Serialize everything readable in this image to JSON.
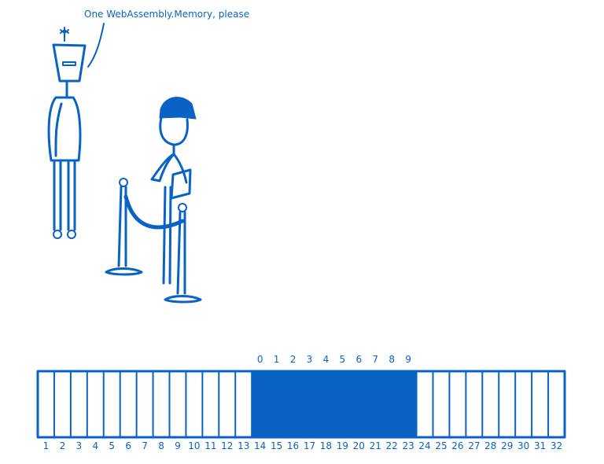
{
  "speech": {
    "text": "One WebAssembly.Memory, please"
  },
  "memory": {
    "allocated_indices": [
      "0",
      "1",
      "2",
      "3",
      "4",
      "5",
      "6",
      "7",
      "8",
      "9"
    ],
    "total_indices": [
      "1",
      "2",
      "3",
      "4",
      "5",
      "6",
      "7",
      "8",
      "9",
      "10",
      "11",
      "12",
      "13",
      "14",
      "15",
      "16",
      "17",
      "18",
      "19",
      "20",
      "21",
      "22",
      "23",
      "24",
      "25",
      "26",
      "27",
      "28",
      "29",
      "30",
      "31",
      "32"
    ],
    "allocated_range": {
      "start": 14,
      "end": 23
    }
  },
  "colors": {
    "ink": "#0a63c4"
  }
}
